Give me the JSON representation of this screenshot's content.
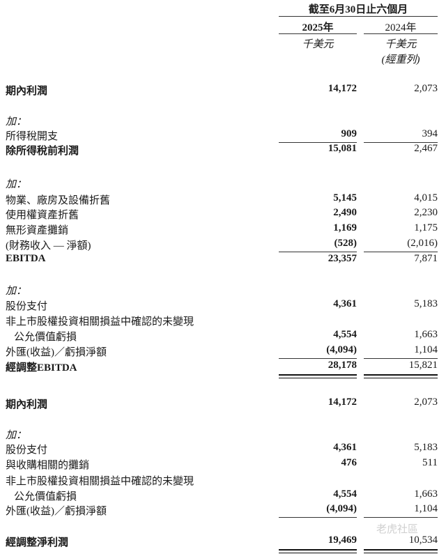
{
  "header": {
    "period": "截至6月30日止六個月",
    "col_2025": "2025年",
    "col_2024": "2024年",
    "unit_2025": "千美元",
    "unit_2024": "千美元",
    "note_2024": "(經重列)"
  },
  "rows": [
    {
      "label": "期內利潤",
      "v2025": "14,172",
      "v2024": "2,073",
      "bold": true,
      "top": 0
    },
    {
      "label": "加：",
      "italic": true
    },
    {
      "label": "所得稅開支",
      "v2025": "909",
      "v2024": "394",
      "underline": true
    },
    {
      "label": "除所得稅前利潤",
      "v2025": "15,081",
      "v2024": "2,467",
      "bold": true
    },
    {
      "label": "加：",
      "italic": true
    },
    {
      "label": "物業、廠房及設備折舊",
      "v2025": "5,145",
      "v2024": "4,015"
    },
    {
      "label": "使用權資產折舊",
      "v2025": "2,490",
      "v2024": "2,230"
    },
    {
      "label": "無形資產攤銷",
      "v2025": "1,169",
      "v2024": "1,175"
    },
    {
      "label": "(財務收入 — 淨額)",
      "v2025": "(528)",
      "v2024": "(2,016)",
      "underline": true
    },
    {
      "label": "EBITDA",
      "v2025": "23,357",
      "v2024": "7,871",
      "bold": true
    },
    {
      "label": "加：",
      "italic": true
    },
    {
      "label": "股份支付",
      "v2025": "4,361",
      "v2024": "5,183"
    },
    {
      "label": "非上市股權投資相關損益中確認的未變現"
    },
    {
      "label": "公允價值虧損",
      "v2025": "4,554",
      "v2024": "1,663",
      "indent": true
    },
    {
      "label": "外匯(收益)／虧損淨額",
      "v2025": "(4,094)",
      "v2024": "1,104",
      "underline": true
    },
    {
      "label": "經調整EBITDA",
      "v2025": "28,178",
      "v2024": "15,821",
      "bold": true,
      "double": true
    },
    {
      "label": "期內利潤",
      "v2025": "14,172",
      "v2024": "2,073",
      "bold": true
    },
    {
      "label": "加：",
      "italic": true
    },
    {
      "label": "股份支付",
      "v2025": "4,361",
      "v2024": "5,183"
    },
    {
      "label": "與收購相關的攤銷",
      "v2025": "476",
      "v2024": "511"
    },
    {
      "label": "非上市股權投資相關損益中確認的未變現"
    },
    {
      "label": "公允價值虧損",
      "v2025": "4,554",
      "v2024": "1,663",
      "indent": true
    },
    {
      "label": "外匯(收益)／虧損淨額",
      "v2025": "(4,094)",
      "v2024": "1,104",
      "underline": true
    },
    {
      "label": "經調整淨利潤",
      "v2025": "19,469",
      "v2024": "10,534",
      "bold": true,
      "double": true
    }
  ],
  "watermark": "老虎社區"
}
